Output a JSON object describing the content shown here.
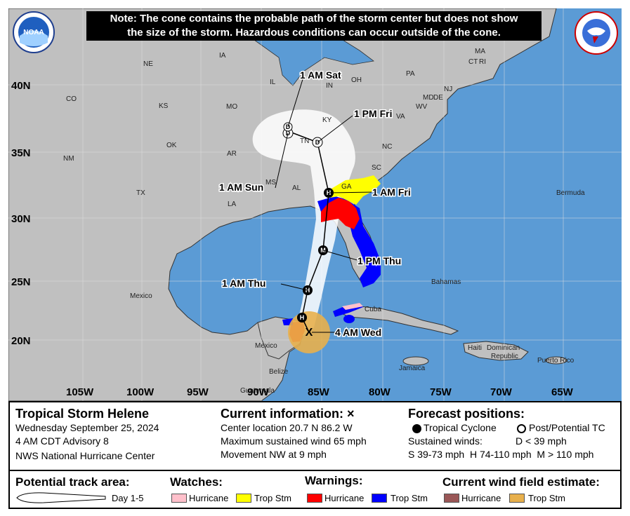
{
  "note": {
    "line1": "Note: The cone contains the probable path of the storm center but does not show",
    "line2": "the size of the storm. Hazardous conditions can occur outside of the cone."
  },
  "logos": {
    "noaa": "NOAA",
    "nws": "NATIONAL WEATHER SERVICE"
  },
  "lat_labels": [
    "40N",
    "35N",
    "30N",
    "25N",
    "20N"
  ],
  "lon_labels": [
    "105W",
    "100W",
    "95W",
    "90W",
    "85W",
    "80W",
    "75W",
    "70W",
    "65W"
  ],
  "states": [
    "NE",
    "IA",
    "IL",
    "IN",
    "OH",
    "PA",
    "MA",
    "CT",
    "RI",
    "NJ",
    "MD",
    "DE",
    "WV",
    "VA",
    "CO",
    "KS",
    "MO",
    "KY",
    "TN",
    "NC",
    "SC",
    "GA",
    "AL",
    "AR",
    "OK",
    "NM",
    "TX",
    "LA",
    "MS"
  ],
  "places": [
    "Bermuda",
    "Mexico",
    "Mexico",
    "Cuba",
    "Bahamas",
    "Jamaica",
    "Haiti",
    "Dominican",
    "Republic",
    "Puerto Rico",
    "Belize",
    "Guatemala"
  ],
  "forecast_points": [
    {
      "time": "4 AM Wed",
      "symbol": "X"
    },
    {
      "time": "",
      "symbol": "H"
    },
    {
      "time": "1 AM Thu",
      "symbol": "H"
    },
    {
      "time": "1 PM Thu",
      "symbol": "M"
    },
    {
      "time": "1 AM Fri",
      "symbol": "H"
    },
    {
      "time": "1 PM Fri",
      "symbol": "D"
    },
    {
      "time": "1 AM Sat",
      "symbol": "D"
    },
    {
      "time": "1 AM Sun",
      "symbol": "D"
    }
  ],
  "info": {
    "storm_name": "Tropical Storm Helene",
    "date": "Wednesday September 25, 2024",
    "advisory": "4 AM CDT Advisory 8",
    "center": "NWS National Hurricane Center",
    "current_title": "Current information: ×",
    "location": "Center location 20.7 N 86.2 W",
    "max_wind": "Maximum sustained wind 65 mph",
    "movement": "Movement NW at 9 mph",
    "forecast_title": "Forecast positions:",
    "tc_label": "Tropical Cyclone",
    "post_label": "Post/Potential TC",
    "sustained": "Sustained winds:",
    "d_cat": "D < 39 mph",
    "cats": "S 39-73 mph  H 74-110 mph  M > 110 mph"
  },
  "legend": {
    "track_title": "Potential track area:",
    "day_label": "Day 1-5",
    "watches_title": "Watches:",
    "warnings_title": "Warnings:",
    "wind_title": "Current wind field estimate:",
    "hurricane": "Hurricane",
    "trop_stm": "Trop Stm",
    "colors": {
      "hurricane_watch": "#ffc0cb",
      "ts_watch": "#ffff00",
      "hurricane_warning": "#ff0000",
      "ts_warning": "#0000ff",
      "hurricane_wind": "#9a5757",
      "ts_wind": "#e8b04c"
    }
  },
  "colors": {
    "land": "#c0c0c0",
    "ocean": "#5b9bd5",
    "cone": "#ffffff"
  }
}
